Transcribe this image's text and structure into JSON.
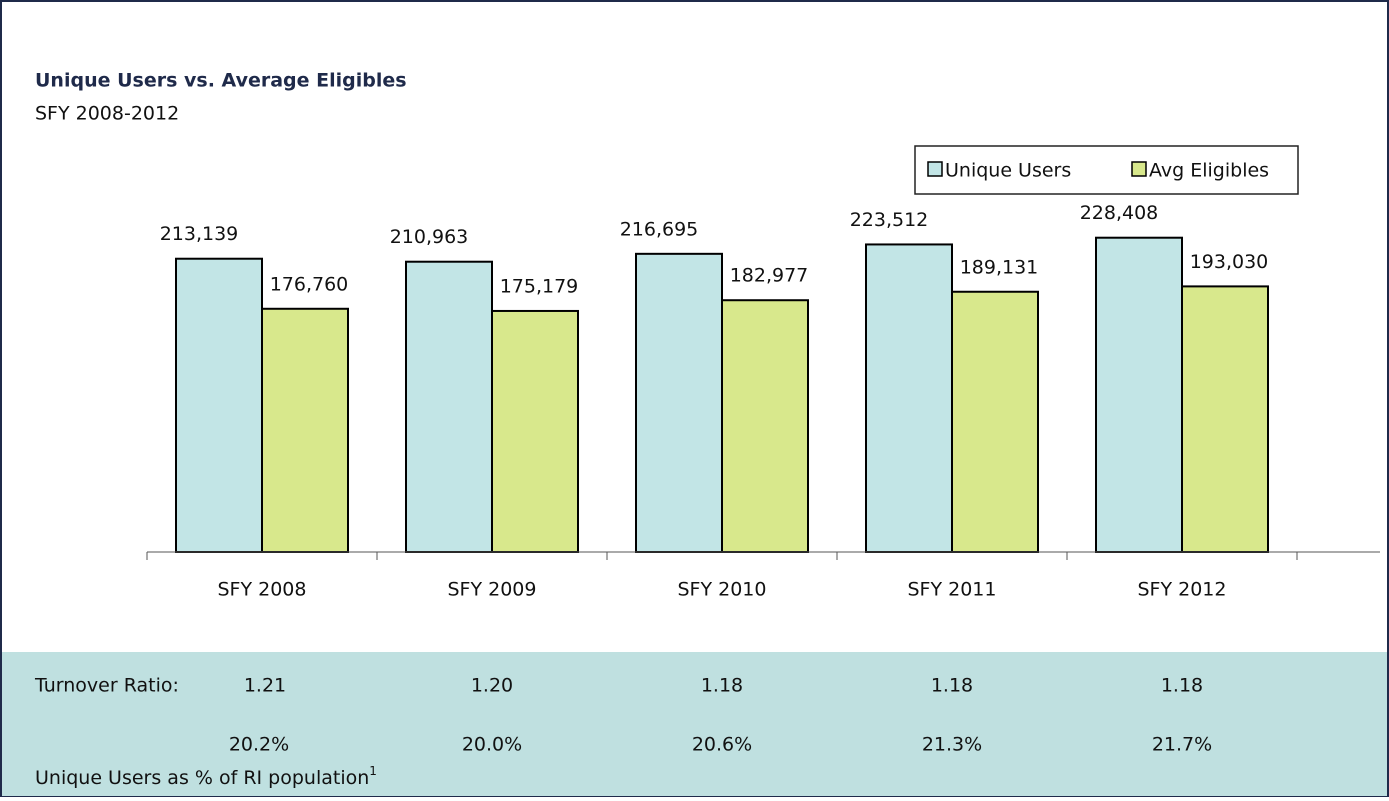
{
  "chart_data": {
    "type": "bar",
    "title": "Unique Users vs. Average Eligibles",
    "subtitle": "SFY 2008-2012",
    "categories": [
      "SFY 2008",
      "SFY 2009",
      "SFY 2010",
      "SFY 2011",
      "SFY 2012"
    ],
    "series": [
      {
        "name": "Unique Users",
        "color": "#c2e5e6",
        "values": [
          213139,
          210963,
          216695,
          223512,
          228408
        ],
        "value_labels": [
          "213,139",
          "210,963",
          "216,695",
          "223,512",
          "228,408"
        ]
      },
      {
        "name": "Avg Eligibles",
        "color": "#d8e88c",
        "values": [
          176760,
          175179,
          182977,
          189131,
          193030
        ],
        "value_labels": [
          "176,760",
          "175,179",
          "182,977",
          "189,131",
          "193,030"
        ]
      }
    ],
    "ylim": [
      0,
      250000
    ],
    "legend": "top-right"
  },
  "table": {
    "rows": [
      {
        "label": "Turnover Ratio:",
        "values": [
          "1.21",
          "1.20",
          "1.18",
          "1.18",
          "1.18"
        ]
      },
      {
        "label": "Unique Users as % of RI population",
        "footnote": "1",
        "values": [
          "20.2%",
          "20.0%",
          "20.6%",
          "21.3%",
          "21.7%"
        ]
      }
    ]
  }
}
